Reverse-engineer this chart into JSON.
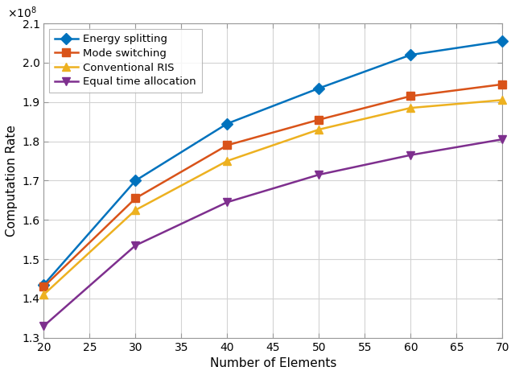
{
  "x": [
    20,
    30,
    40,
    50,
    60,
    70
  ],
  "energy_splitting": [
    143500000.0,
    170000000.0,
    184500000.0,
    193500000.0,
    202000000.0,
    205500000.0
  ],
  "mode_switching": [
    143000000.0,
    165500000.0,
    179000000.0,
    185500000.0,
    191500000.0,
    194500000.0
  ],
  "conventional_ris": [
    141000000.0,
    162500000.0,
    175000000.0,
    183000000.0,
    188500000.0,
    190500000.0
  ],
  "equal_time": [
    133000000.0,
    153500000.0,
    164500000.0,
    171500000.0,
    176500000.0,
    180500000.0
  ],
  "colors": {
    "energy_splitting": "#0072BD",
    "mode_switching": "#D95319",
    "conventional_ris": "#EDB120",
    "equal_time": "#7E2F8E"
  },
  "markers": {
    "energy_splitting": "D",
    "mode_switching": "s",
    "conventional_ris": "^",
    "equal_time": "v"
  },
  "labels": {
    "energy_splitting": "Energy splitting",
    "mode_switching": "Mode switching",
    "conventional_ris": "Conventional RIS",
    "equal_time": "Equal time allocation"
  },
  "xlabel": "Number of Elements",
  "ylabel": "Computation Rate",
  "ylim": [
    130000000.0,
    210000000.0
  ],
  "xlim": [
    20,
    70
  ],
  "xticks": [
    20,
    25,
    30,
    35,
    40,
    45,
    50,
    55,
    60,
    65,
    70
  ],
  "yticks": [
    130000000.0,
    140000000.0,
    150000000.0,
    160000000.0,
    170000000.0,
    180000000.0,
    190000000.0,
    200000000.0,
    210000000.0
  ],
  "linewidth": 1.8,
  "markersize": 7,
  "grid_color": "#D3D3D3",
  "background_color": "#FFFFFF",
  "spine_color": "#999999"
}
